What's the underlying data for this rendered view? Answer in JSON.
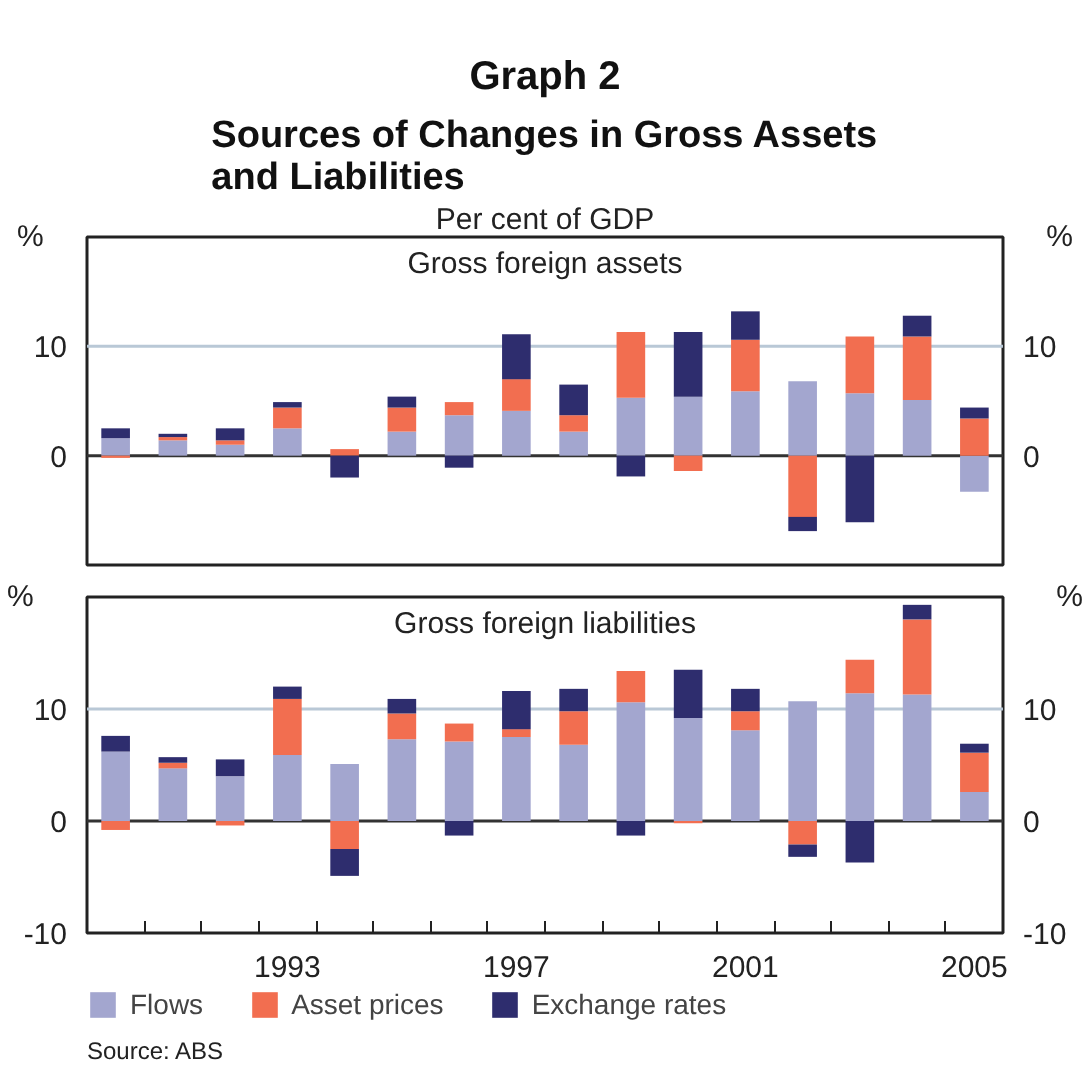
{
  "chart_data": [
    {
      "type": "bar",
      "stacked": true,
      "title": "Graph 2",
      "subtitle": "Sources of Changes in Gross Assets and Liabilities",
      "annotations": [
        "Per cent of GDP",
        "Gross foreign assets"
      ],
      "ylabel": "%",
      "y2label": "%",
      "x": [
        1990,
        1991,
        1992,
        1993,
        1994,
        1995,
        1996,
        1997,
        1998,
        1999,
        2000,
        2001,
        2002,
        2003,
        2004,
        2005
      ],
      "xlim": [
        1989.5,
        2005.5
      ],
      "ylim": [
        -10,
        20
      ],
      "yticks": [
        0,
        10
      ],
      "y2lim": [
        -10,
        20
      ],
      "y2ticks": [
        0,
        10
      ],
      "ref_lines": [
        {
          "axis": "y",
          "value": 10,
          "color": "#b9c8d6"
        },
        {
          "axis": "y",
          "value": 0,
          "color": "#333333"
        }
      ],
      "tick_labels": "y",
      "series": [
        {
          "color": "#a3a6cf",
          "values": [
            1.6,
            1.4,
            1.0,
            2.5,
            null,
            2.2,
            3.7,
            4.1,
            2.2,
            5.3,
            5.4,
            5.9,
            6.8,
            5.7,
            5.1,
            -3.3
          ]
        },
        {
          "color": "#f26e50",
          "values": [
            -0.2,
            0.3,
            0.4,
            1.9,
            0.6,
            2.2,
            1.2,
            2.9,
            1.5,
            6.0,
            -1.4,
            4.7,
            -5.6,
            5.2,
            5.8,
            3.4
          ]
        },
        {
          "color": "#2e2d6e",
          "values": [
            0.9,
            0.3,
            1.1,
            0.5,
            -2.0,
            1.0,
            -1.1,
            4.1,
            2.8,
            -1.9,
            5.9,
            2.6,
            -1.3,
            -6.1,
            1.9,
            1.0
          ]
        }
      ]
    },
    {
      "type": "bar",
      "stacked": true,
      "annotations": [
        "Gross foreign liabilities",
        "Source: ABS"
      ],
      "ylabel": "%",
      "y2label": "%",
      "x": [
        1990,
        1991,
        1992,
        1993,
        1994,
        1995,
        1996,
        1997,
        1998,
        1999,
        2000,
        2001,
        2002,
        2003,
        2004,
        2005
      ],
      "xlim": [
        1989.5,
        2005.5
      ],
      "xticks": [
        {
          "value": 1990.5,
          "label": null
        },
        {
          "value": 1991.5,
          "label": null
        },
        {
          "value": 1992.5,
          "label": null
        },
        {
          "value": 1993.5,
          "label": null
        },
        {
          "value": 1994.5,
          "label": null
        },
        {
          "value": 1995.5,
          "label": null
        },
        {
          "value": 1996.5,
          "label": null
        },
        {
          "value": 1997.5,
          "label": null
        },
        {
          "value": 1998.5,
          "label": null
        },
        {
          "value": 1999.5,
          "label": null
        },
        {
          "value": 2000.5,
          "label": null
        },
        {
          "value": 2001.5,
          "label": null
        },
        {
          "value": 2002.5,
          "label": null
        },
        {
          "value": 2003.5,
          "label": null
        },
        {
          "value": 2004.5,
          "label": null
        },
        1993,
        1997,
        2001,
        2005
      ],
      "ylim": [
        -10,
        20
      ],
      "yticks": [
        -10,
        0,
        10
      ],
      "y2lim": [
        -10,
        20
      ],
      "y2ticks": [
        -10,
        0,
        10
      ],
      "ref_lines": [
        {
          "axis": "y",
          "value": 10,
          "color": "#b9c8d6"
        },
        {
          "axis": "y",
          "value": 0,
          "color": "#333333"
        }
      ],
      "legend": "bottom",
      "series": [
        {
          "name": "Flows",
          "color": "#a3a6cf",
          "values": [
            6.2,
            4.7,
            4.0,
            5.9,
            5.1,
            7.3,
            7.1,
            7.5,
            6.8,
            10.6,
            9.2,
            8.1,
            10.7,
            11.4,
            11.3,
            2.6
          ]
        },
        {
          "name": "Asset prices",
          "color": "#f26e50",
          "values": [
            -0.8,
            0.5,
            -0.4,
            5.0,
            -2.5,
            2.3,
            1.6,
            0.7,
            3.0,
            2.8,
            -0.2,
            1.7,
            -2.1,
            3.0,
            6.7,
            3.5
          ]
        },
        {
          "name": "Exchange rates",
          "color": "#2e2d6e",
          "values": [
            1.4,
            0.5,
            1.5,
            1.1,
            -2.4,
            1.3,
            -1.3,
            3.4,
            2.0,
            -1.3,
            4.3,
            2.0,
            -1.1,
            -3.7,
            1.3,
            0.8
          ]
        }
      ]
    }
  ]
}
